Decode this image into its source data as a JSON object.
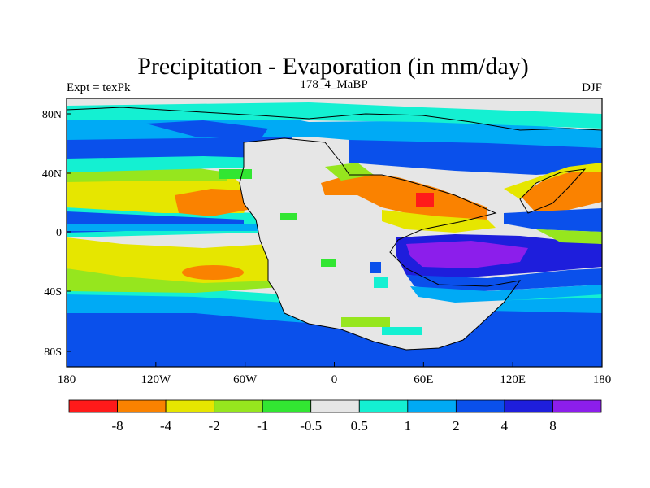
{
  "title": "Precipitation - Evaporation (in mm/day)",
  "subtitle_left": "Expt = texPk",
  "subtitle_center": "178_4_MaBP",
  "subtitle_right": "DJF",
  "x_ticks": [
    "180",
    "120W",
    "60W",
    "0",
    "60E",
    "120E",
    "180"
  ],
  "y_ticks": [
    "80N",
    "40N",
    "0",
    "40S",
    "80S"
  ],
  "colorbar": {
    "colors": [
      "#ff1a1a",
      "#fa8200",
      "#e6e600",
      "#96e61e",
      "#32e632",
      "#e6e6e6",
      "#14f0d2",
      "#00aaf5",
      "#0a50eb",
      "#1e1edc",
      "#8c1eeb"
    ],
    "labels": [
      "-8",
      "-4",
      "-2",
      "-1",
      "-0.5",
      "0.5",
      "1",
      "2",
      "4",
      "8"
    ]
  },
  "colors": {
    "background": "#ffffff",
    "land_neutral": "#e6e6e6",
    "coastline": "#000000"
  }
}
